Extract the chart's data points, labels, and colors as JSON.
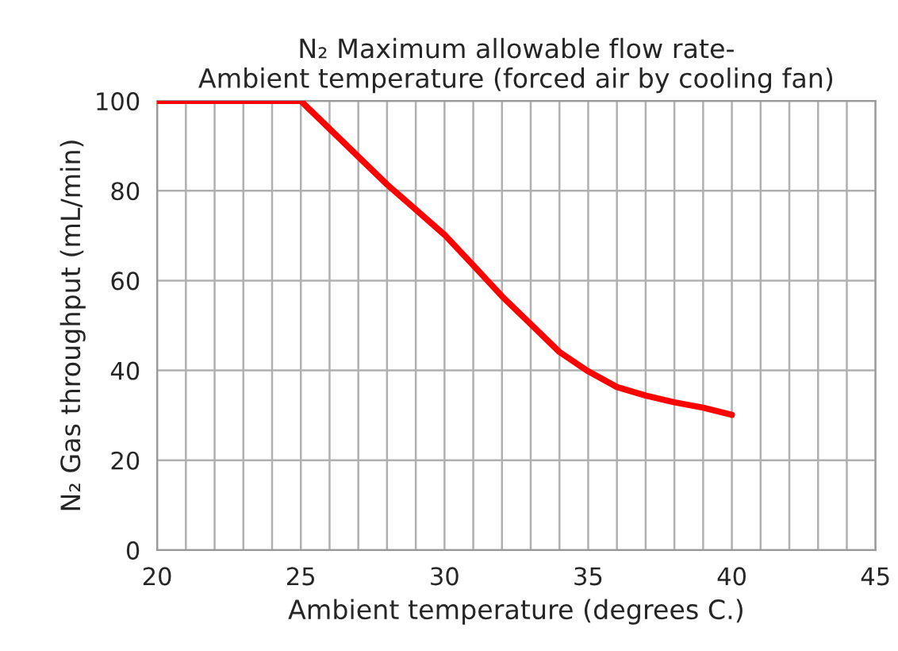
{
  "chart_data": {
    "type": "line",
    "title": "N₂ Maximum allowable flow rate-\nAmbient temperature (forced air by cooling fan)",
    "xlabel": "Ambient temperature (degrees C.)",
    "ylabel": "N₂ Gas throughput (mL/min)",
    "x": [
      20,
      25,
      28,
      30,
      31,
      32,
      33,
      34,
      35,
      36,
      37,
      38,
      39,
      40
    ],
    "series": [
      {
        "color": "#ff0000",
        "values": [
          100,
          100,
          81.4,
          70.2,
          63.4,
          56.5,
          50.3,
          44.1,
          39.8,
          36.3,
          34.4,
          32.9,
          31.7,
          30.1
        ]
      }
    ],
    "xlim": [
      20,
      45
    ],
    "ylim": [
      0,
      100
    ],
    "xticks": [
      20,
      {
        "value": 21,
        "label": null
      },
      {
        "value": 22,
        "label": null
      },
      {
        "value": 23,
        "label": null
      },
      {
        "value": 24,
        "label": null
      },
      25,
      {
        "value": 26,
        "label": null
      },
      {
        "value": 27,
        "label": null
      },
      {
        "value": 28,
        "label": null
      },
      {
        "value": 29,
        "label": null
      },
      30,
      {
        "value": 31,
        "label": null
      },
      {
        "value": 32,
        "label": null
      },
      {
        "value": 33,
        "label": null
      },
      {
        "value": 34,
        "label": null
      },
      35,
      {
        "value": 36,
        "label": null
      },
      {
        "value": 37,
        "label": null
      },
      {
        "value": 38,
        "label": null
      },
      {
        "value": 39,
        "label": null
      },
      40,
      {
        "value": 41,
        "label": null
      },
      {
        "value": 42,
        "label": null
      },
      {
        "value": 43,
        "label": null
      },
      {
        "value": 44,
        "label": null
      },
      45
    ],
    "yticks": [
      0,
      20,
      40,
      60,
      80,
      100
    ],
    "grid": true,
    "marker": "none",
    "line_style": "solid"
  }
}
